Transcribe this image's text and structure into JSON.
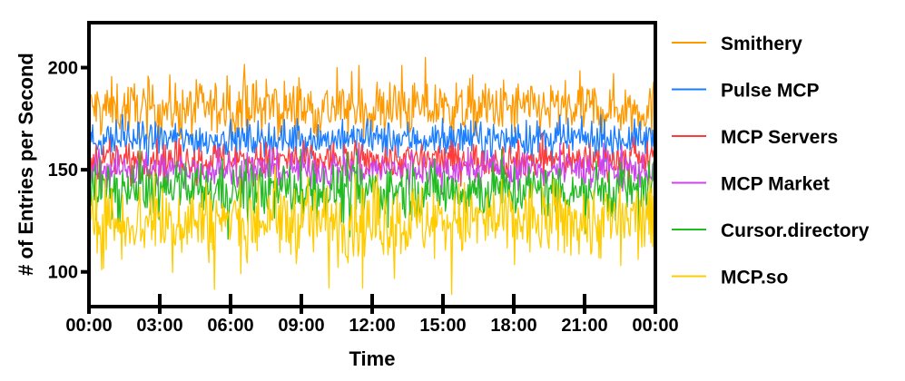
{
  "chart_data": {
    "type": "line",
    "xlabel": "Time",
    "ylabel": "# of Entries per Second",
    "x_ticks": [
      "00:00",
      "03:00",
      "06:00",
      "09:00",
      "12:00",
      "15:00",
      "18:00",
      "21:00",
      "00:00"
    ],
    "y_ticks": [
      100,
      150,
      200
    ],
    "ylim": [
      83,
      222
    ],
    "grid": false,
    "legend_position": "right",
    "series": [
      {
        "name": "Smithery",
        "color": "#FF9900",
        "mean": 180,
        "spread": 8,
        "min": 165,
        "max": 205
      },
      {
        "name": "Pulse MCP",
        "color": "#1A7CFF",
        "mean": 165,
        "spread": 5,
        "min": 152,
        "max": 177
      },
      {
        "name": "MCP Servers",
        "color": "#FF3B3B",
        "mean": 155,
        "spread": 5,
        "min": 142,
        "max": 168
      },
      {
        "name": "MCP Market",
        "color": "#CC44EE",
        "mean": 150,
        "spread": 5,
        "min": 138,
        "max": 163
      },
      {
        "name": "Cursor.directory",
        "color": "#22BB22",
        "mean": 140,
        "spread": 8,
        "min": 104,
        "max": 160
      },
      {
        "name": "MCP.so",
        "color": "#FFCC00",
        "mean": 125,
        "spread": 11,
        "min": 85,
        "max": 158
      }
    ]
  }
}
